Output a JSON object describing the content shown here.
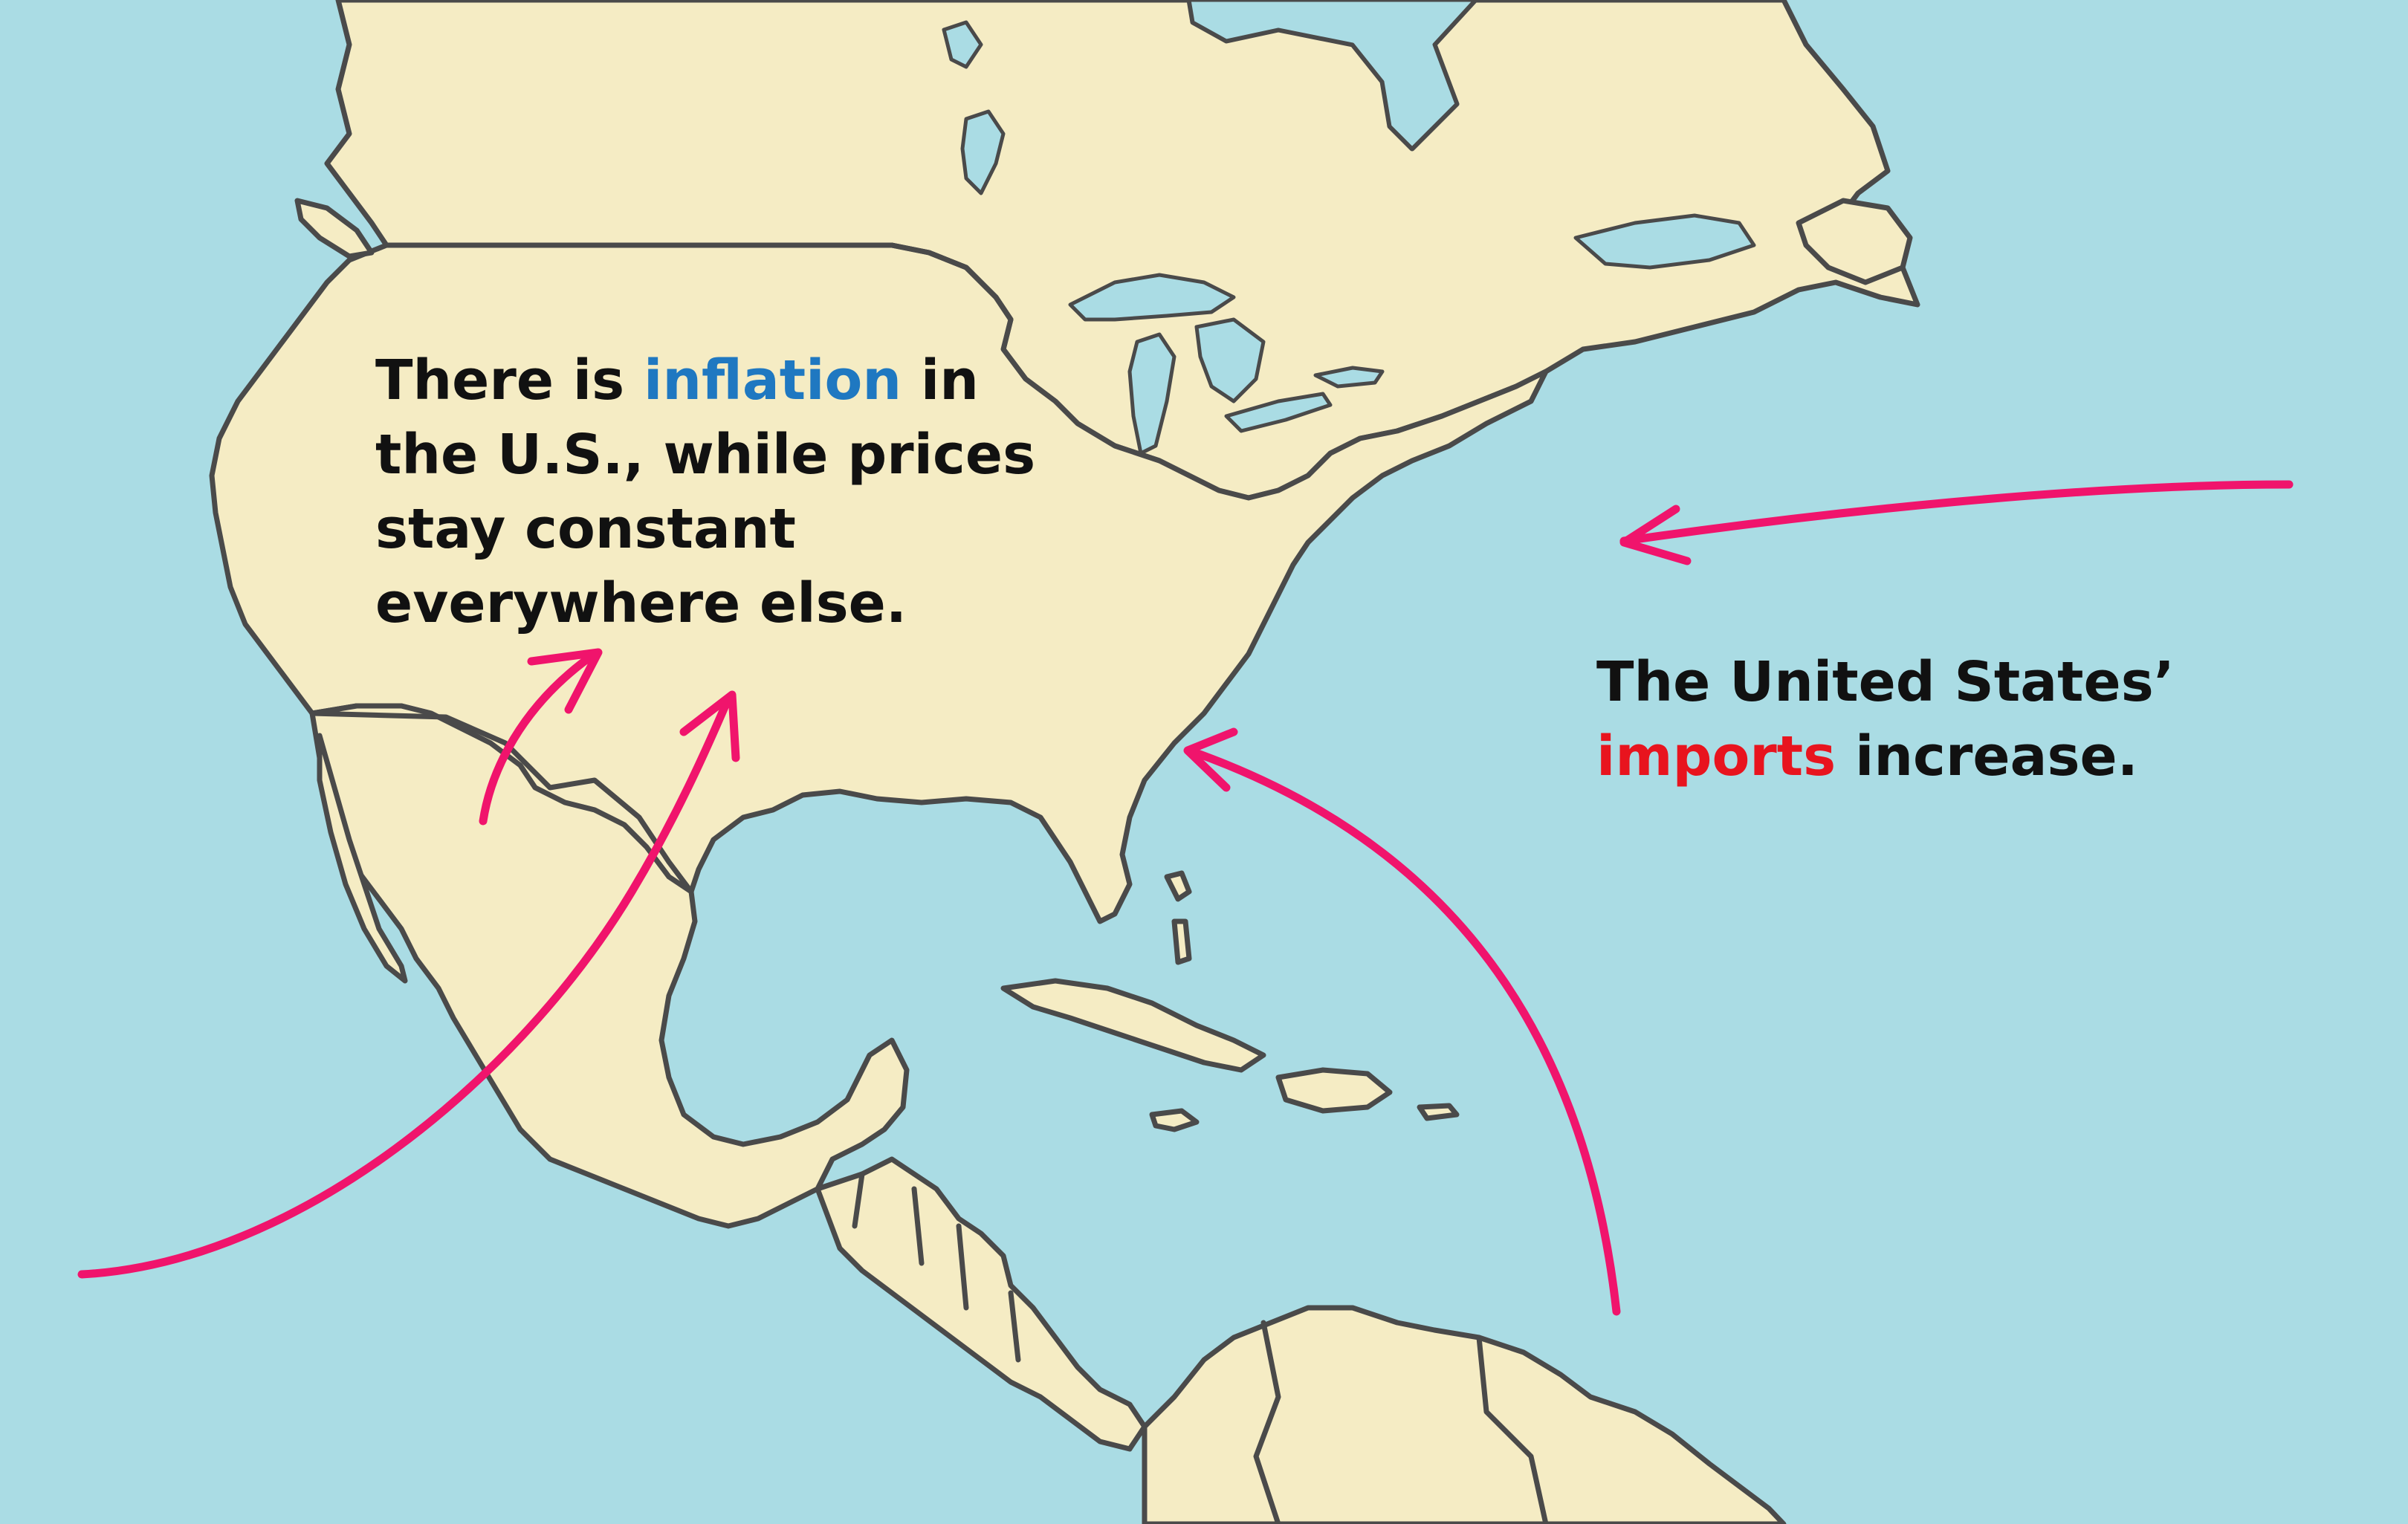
{
  "map": {
    "ocean_color": "#aadce4",
    "land_color": "#f5ecc4",
    "border_color": "#4a4a4a",
    "arrow_color": "#f0146c"
  },
  "caption_inflation": {
    "before": "There is ",
    "highlight": "inflation",
    "after": " in the U.S., while prices stay constant everywhere else.",
    "highlight_color": "#1f78c1"
  },
  "caption_imports": {
    "before": "The United States’ ",
    "highlight": "imports",
    "after": " increase.",
    "highlight_color": "#e8141e"
  }
}
